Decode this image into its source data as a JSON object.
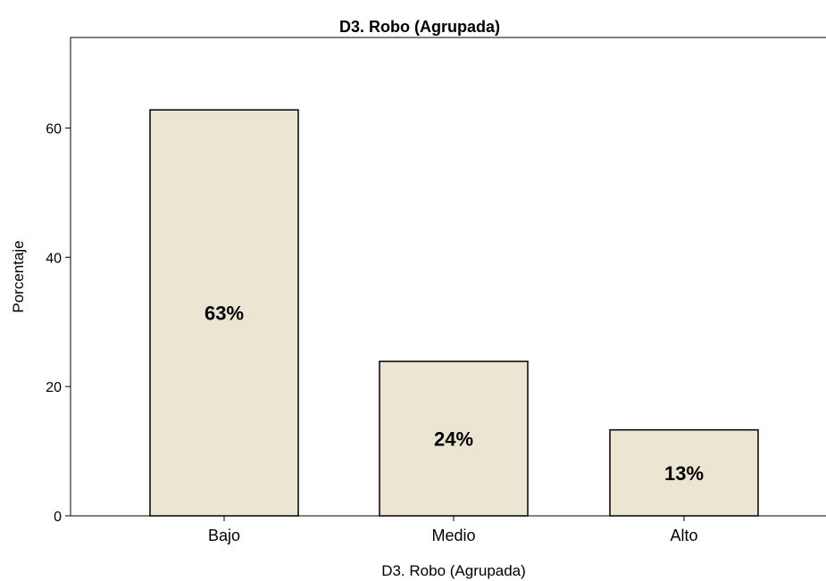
{
  "chart_data": {
    "type": "bar",
    "title": "D3. Robo (Agrupada)",
    "xlabel": "D3. Robo (Agrupada)",
    "ylabel": "Porcentaje",
    "categories": [
      "Bajo",
      "Medio",
      "Alto"
    ],
    "values": [
      62.8,
      23.9,
      13.3
    ],
    "data_labels": [
      "63%",
      "24%",
      "13%"
    ],
    "ylim": [
      0,
      74
    ],
    "yticks": [
      0,
      20,
      40,
      60
    ],
    "grid": false,
    "legend": "none",
    "bar_color": "#ece5d1",
    "bar_edge_color": "#000000"
  }
}
